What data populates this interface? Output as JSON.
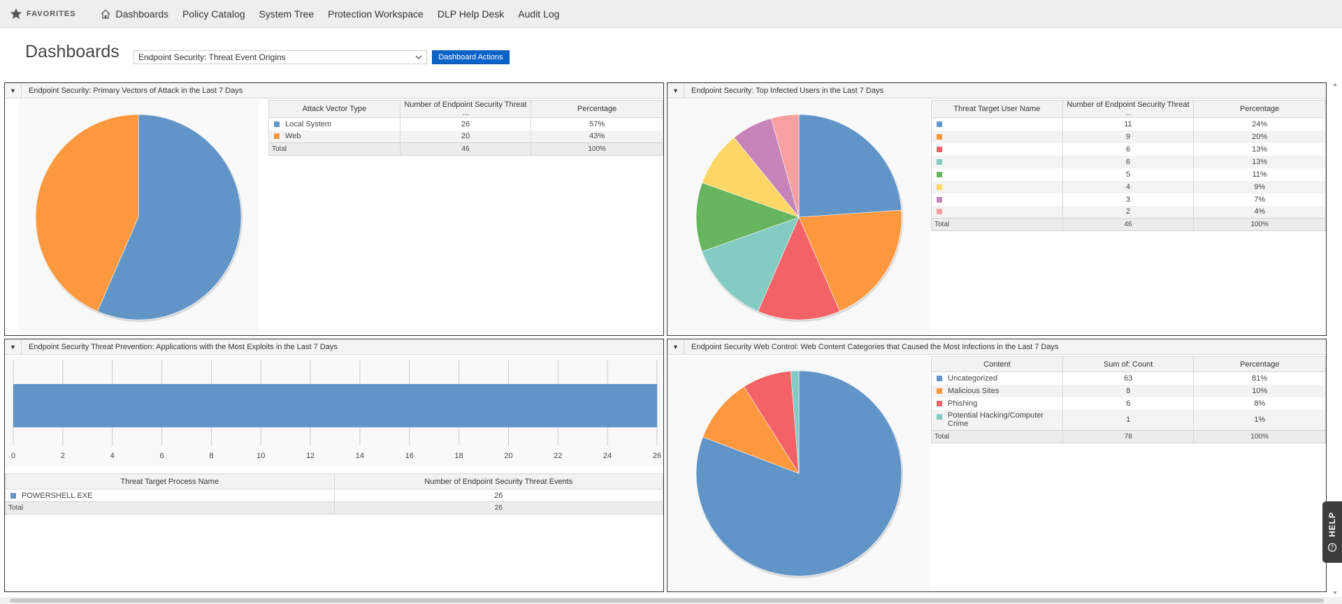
{
  "nav": {
    "favorites_label": "FAVORITES",
    "items": [
      "Dashboards",
      "Policy Catalog",
      "System Tree",
      "Protection Workspace",
      "DLP Help Desk",
      "Audit Log"
    ]
  },
  "header": {
    "title": "Dashboards",
    "selected_dashboard": "Endpoint Security: Threat Event Origins",
    "actions_label": "Dashboard Actions"
  },
  "colors": {
    "blue": "#6195c8",
    "orange": "#fe983e",
    "red": "#f26266",
    "teal": "#84cbc3",
    "green": "#67b55f",
    "yellow": "#fcd765",
    "purple": "#c784b8",
    "pink": "#f7a0a1",
    "accent": "#0b63c7"
  },
  "panels": {
    "vectors": {
      "title": "Endpoint Security: Primary Vectors of Attack in the Last 7 Days",
      "columns": [
        "Attack Vector Type",
        "Number of Endpoint Security Threat ...",
        "Percentage"
      ],
      "rows": [
        {
          "name": "Local System",
          "count": "26",
          "pct": "57%"
        },
        {
          "name": "Web",
          "count": "20",
          "pct": "43%"
        }
      ],
      "total": {
        "label": "Total",
        "count": "46",
        "pct": "100%"
      }
    },
    "users": {
      "title": "Endpoint Security: Top Infected Users in the Last 7 Days",
      "columns": [
        "Threat Target User Name",
        "Number of Endpoint Security Threat ...",
        "Percentage"
      ],
      "rows": [
        {
          "name": "",
          "count": "11",
          "pct": "24%"
        },
        {
          "name": "",
          "count": "9",
          "pct": "20%"
        },
        {
          "name": "",
          "count": "6",
          "pct": "13%"
        },
        {
          "name": "",
          "count": "6",
          "pct": "13%"
        },
        {
          "name": "",
          "count": "5",
          "pct": "11%"
        },
        {
          "name": "",
          "count": "4",
          "pct": "9%"
        },
        {
          "name": "",
          "count": "3",
          "pct": "7%"
        },
        {
          "name": "",
          "count": "2",
          "pct": "4%"
        }
      ],
      "total": {
        "label": "Total",
        "count": "46",
        "pct": "100%"
      }
    },
    "apps": {
      "title": "Endpoint Security Threat Prevention: Applications with the Most Exploits in the Last 7 Days",
      "columns": [
        "Threat Target Process Name",
        "Number of Endpoint Security Threat Events"
      ],
      "rows": [
        {
          "name": "POWERSHELL.EXE",
          "count": "26"
        }
      ],
      "total": {
        "label": "Total",
        "count": "26"
      }
    },
    "web": {
      "title": "Endpoint Security Web Control: Web Content Categories that Caused the Most Infections in the Last 7 Days",
      "columns": [
        "Content",
        "Sum of: Count",
        "Percentage"
      ],
      "rows": [
        {
          "name": "Uncategorized",
          "count": "63",
          "pct": "81%"
        },
        {
          "name": "Malicious Sites",
          "count": "8",
          "pct": "10%"
        },
        {
          "name": "Phishing",
          "count": "6",
          "pct": "8%"
        },
        {
          "name": "Potential Hacking/Computer Crime",
          "count": "1",
          "pct": "1%"
        }
      ],
      "total": {
        "label": "Total",
        "count": "78",
        "pct": "100%"
      }
    }
  },
  "help_label": "HELP",
  "chart_data": [
    {
      "type": "pie",
      "categories": [
        "Local System",
        "Web"
      ],
      "values": [
        26,
        20
      ],
      "colors": [
        "#6195c8",
        "#fe983e"
      ]
    },
    {
      "type": "pie",
      "categories": [
        "",
        "",
        "",
        "",
        "",
        "",
        "",
        ""
      ],
      "values": [
        11,
        9,
        6,
        6,
        5,
        4,
        3,
        2
      ],
      "colors": [
        "#6195c8",
        "#fe983e",
        "#f26266",
        "#84cbc3",
        "#67b55f",
        "#fcd765",
        "#c784b8",
        "#f7a0a1"
      ]
    },
    {
      "type": "bar",
      "orientation": "horizontal",
      "categories": [
        "POWERSHELL.EXE"
      ],
      "values": [
        26
      ],
      "xlim": [
        0,
        26
      ],
      "xticks": [
        0,
        2,
        4,
        6,
        8,
        10,
        12,
        14,
        16,
        18,
        20,
        22,
        24,
        26
      ],
      "grid": true,
      "colors": [
        "#6195c8"
      ]
    },
    {
      "type": "pie",
      "categories": [
        "Uncategorized",
        "Malicious Sites",
        "Phishing",
        "Potential Hacking/Computer Crime"
      ],
      "values": [
        63,
        8,
        6,
        1
      ],
      "colors": [
        "#6195c8",
        "#fe983e",
        "#f26266",
        "#84cbc3"
      ]
    }
  ]
}
